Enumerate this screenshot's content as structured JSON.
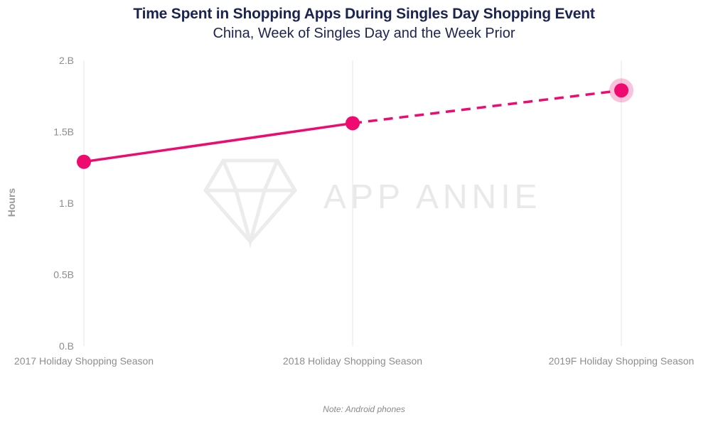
{
  "chart_data": {
    "type": "line",
    "title": "Time Spent in Shopping Apps During Singles Day Shopping Event",
    "subtitle": "China, Week of Singles Day and the Week Prior",
    "ylabel": "Hours",
    "xlabel": "",
    "categories": [
      "2017 Holiday Shopping Season",
      "2018 Holiday Shopping Season",
      "2019F Holiday Shopping Season"
    ],
    "series": [
      {
        "values": [
          1.29,
          1.56,
          1.79
        ],
        "line_style": "solid to 2018, dashed for 2019 forecast",
        "color": "#ee0a6f"
      }
    ],
    "ylim": [
      0,
      2
    ],
    "yticks": [
      "0.B",
      "0.5B",
      "1.B",
      "1.5B",
      "2.B"
    ],
    "grid": "vertical lines at categories",
    "note": "Note: Android phones",
    "watermark": "APP ANNIE"
  }
}
